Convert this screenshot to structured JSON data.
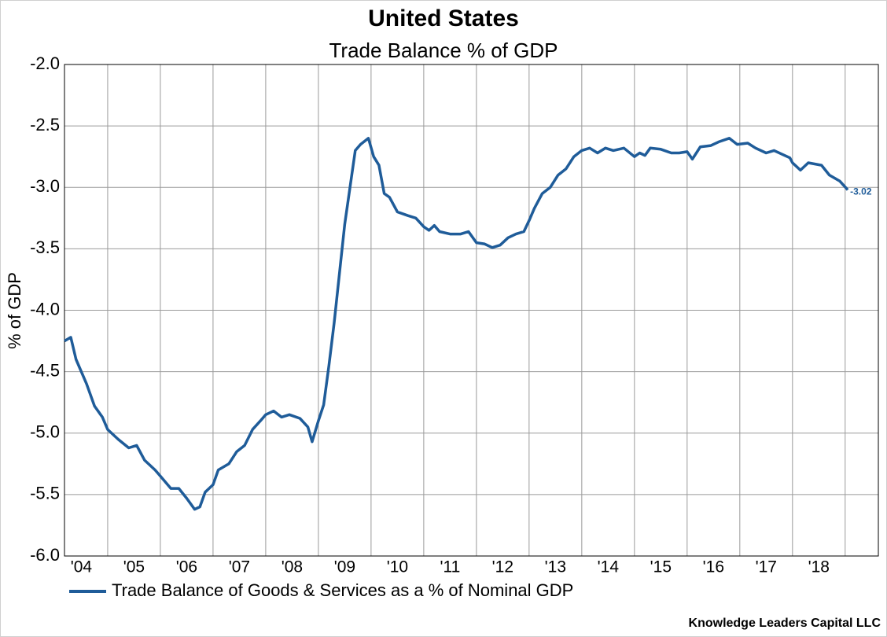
{
  "chart_data": {
    "type": "line",
    "title": "United States",
    "subtitle": "Trade Balance % of GDP",
    "ylabel": "% of GDP",
    "source": "Knowledge Leaders Capital LLC",
    "grid": true,
    "legend": "bottom-left",
    "xlim": [
      2004.18,
      2019.63
    ],
    "ylim": [
      -6,
      -2
    ],
    "yticks": [
      {
        "value": -6,
        "label": "-6.0"
      },
      -5.5,
      {
        "value": -5,
        "label": "-5.0"
      },
      -4.5,
      {
        "value": -4,
        "label": "-4.0"
      },
      -3.5,
      {
        "value": -3,
        "label": "-3.0"
      },
      -2.5,
      {
        "value": -2,
        "label": "-2.0"
      }
    ],
    "xticks": [
      {
        "value": 2004.5,
        "label": "'04"
      },
      {
        "value": 2005.5,
        "label": "'05"
      },
      {
        "value": 2006.5,
        "label": "'06"
      },
      {
        "value": 2007.5,
        "label": "'07"
      },
      {
        "value": 2008.5,
        "label": "'08"
      },
      {
        "value": 2009.5,
        "label": "'09"
      },
      {
        "value": 2010.5,
        "label": "'10"
      },
      {
        "value": 2011.5,
        "label": "'11"
      },
      {
        "value": 2012.5,
        "label": "'12"
      },
      {
        "value": 2013.5,
        "label": "'13"
      },
      {
        "value": 2014.5,
        "label": "'14"
      },
      {
        "value": 2015.5,
        "label": "'15"
      },
      {
        "value": 2016.5,
        "label": "'16"
      },
      {
        "value": 2017.5,
        "label": "'17"
      },
      {
        "value": 2018.5,
        "label": "'18"
      }
    ],
    "xgrid": [
      2005,
      2006,
      2007,
      2008,
      2009,
      2010,
      2011,
      2012,
      2013,
      2014,
      2015,
      2016,
      2017,
      2018,
      2019
    ],
    "series": [
      {
        "name": "Trade Balance of Goods & Services as a % of Nominal GDP",
        "color": "#1f5c99",
        "x": [
          2004.18,
          2004.3,
          2004.4,
          2004.6,
          2004.75,
          2004.9,
          2005.0,
          2005.2,
          2005.4,
          2005.55,
          2005.7,
          2005.9,
          2006.0,
          2006.2,
          2006.35,
          2006.5,
          2006.65,
          2006.75,
          2006.85,
          2007.0,
          2007.1,
          2007.3,
          2007.45,
          2007.6,
          2007.75,
          2007.9,
          2008.0,
          2008.15,
          2008.3,
          2008.45,
          2008.65,
          2008.8,
          2008.88,
          2009.0,
          2009.1,
          2009.2,
          2009.3,
          2009.4,
          2009.5,
          2009.6,
          2009.7,
          2009.8,
          2009.95,
          2010.05,
          2010.15,
          2010.25,
          2010.35,
          2010.5,
          2010.7,
          2010.85,
          2011.0,
          2011.1,
          2011.2,
          2011.3,
          2011.5,
          2011.7,
          2011.85,
          2012.0,
          2012.15,
          2012.3,
          2012.45,
          2012.6,
          2012.75,
          2012.9,
          2013.0,
          2013.1,
          2013.25,
          2013.4,
          2013.55,
          2013.7,
          2013.85,
          2014.0,
          2014.15,
          2014.3,
          2014.45,
          2014.6,
          2014.8,
          2015.0,
          2015.1,
          2015.2,
          2015.3,
          2015.5,
          2015.7,
          2015.85,
          2016.0,
          2016.1,
          2016.25,
          2016.45,
          2016.6,
          2016.8,
          2016.95,
          2017.15,
          2017.3,
          2017.5,
          2017.65,
          2017.8,
          2017.95,
          2018.0,
          2018.15,
          2018.3,
          2018.55,
          2018.7,
          2018.9,
          2019.05
        ],
        "values": [
          -4.25,
          -4.22,
          -4.4,
          -4.6,
          -4.78,
          -4.87,
          -4.97,
          -5.05,
          -5.12,
          -5.1,
          -5.22,
          -5.3,
          -5.35,
          -5.45,
          -5.45,
          -5.53,
          -5.62,
          -5.6,
          -5.48,
          -5.42,
          -5.3,
          -5.25,
          -5.15,
          -5.1,
          -4.97,
          -4.9,
          -4.85,
          -4.82,
          -4.87,
          -4.85,
          -4.88,
          -4.95,
          -5.07,
          -4.9,
          -4.77,
          -4.45,
          -4.1,
          -3.7,
          -3.3,
          -3.0,
          -2.7,
          -2.65,
          -2.6,
          -2.75,
          -2.82,
          -3.05,
          -3.08,
          -3.2,
          -3.23,
          -3.25,
          -3.32,
          -3.35,
          -3.31,
          -3.36,
          -3.38,
          -3.38,
          -3.36,
          -3.45,
          -3.46,
          -3.49,
          -3.47,
          -3.41,
          -3.38,
          -3.36,
          -3.27,
          -3.17,
          -3.05,
          -3.0,
          -2.9,
          -2.85,
          -2.75,
          -2.7,
          -2.68,
          -2.72,
          -2.68,
          -2.7,
          -2.68,
          -2.75,
          -2.72,
          -2.74,
          -2.68,
          -2.69,
          -2.72,
          -2.72,
          -2.71,
          -2.77,
          -2.67,
          -2.66,
          -2.63,
          -2.6,
          -2.65,
          -2.64,
          -2.68,
          -2.72,
          -2.7,
          -2.73,
          -2.76,
          -2.8,
          -2.86,
          -2.8,
          -2.82,
          -2.9,
          -2.95,
          -3.02
        ]
      }
    ]
  }
}
